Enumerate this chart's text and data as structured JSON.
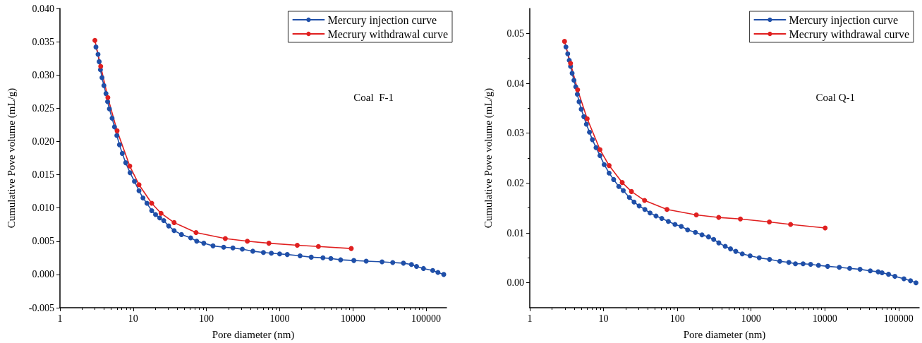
{
  "chart_data": [
    {
      "type": "line",
      "xlabel": "Pore diameter (nm)",
      "ylabel": "Cumulative Pove volume (mL/g)",
      "annotations": [
        "Coal  F-1"
      ],
      "log": "x",
      "grid": false,
      "legend": "top right",
      "marker": "circle",
      "line_style": "solid",
      "xlim": [
        1,
        190000
      ],
      "xticks": [
        1,
        10,
        100,
        1000,
        10000,
        100000
      ],
      "ylim": [
        -0.005,
        0.04
      ],
      "yticks": [
        {
          "value": -0.005,
          "label": "-0.005"
        },
        {
          "value": 0,
          "label": "0.000"
        },
        {
          "value": 0.005,
          "label": "0.005"
        },
        {
          "value": 0.01,
          "label": "0.010"
        },
        {
          "value": 0.015,
          "label": "0.015"
        },
        {
          "value": 0.02,
          "label": "0.020"
        },
        {
          "value": 0.025,
          "label": "0.025"
        },
        {
          "value": 0.03,
          "label": "0.030"
        },
        {
          "value": 0.035,
          "label": "0.035"
        },
        {
          "value": 0.04,
          "label": "0.040"
        }
      ],
      "series": [
        {
          "name": "Mercury injection curve",
          "color": "#1f4fa8",
          "x": [
            3.1,
            3.31,
            3.43,
            3.57,
            3.75,
            3.98,
            4.25,
            4.47,
            4.73,
            5.15,
            5.55,
            5.98,
            6.5,
            7.1,
            7.9,
            9.06,
            10.4,
            12.0,
            13.6,
            15.4,
            17.9,
            20.2,
            23.0,
            26.1,
            30.5,
            36.2,
            45.6,
            60.9,
            73.7,
            92,
            123,
            172,
            230,
            309,
            430,
            600,
            770,
            1000,
            1270,
            1900,
            2700,
            3900,
            5000,
            6800,
            10300,
            15200,
            25000,
            35000,
            49000,
            63000,
            74000,
            92000,
            123000,
            145000,
            174000
          ],
          "values": [
            0.0342,
            0.0331,
            0.032,
            0.0308,
            0.0296,
            0.0284,
            0.0272,
            0.026,
            0.0249,
            0.0235,
            0.0222,
            0.0209,
            0.0195,
            0.0182,
            0.0168,
            0.0153,
            0.014,
            0.0126,
            0.0115,
            0.0107,
            0.0096,
            0.009,
            0.0085,
            0.0081,
            0.0073,
            0.0066,
            0.006,
            0.0055,
            0.005,
            0.0047,
            0.0043,
            0.0041,
            0.004,
            0.0038,
            0.0035,
            0.0033,
            0.0032,
            0.0031,
            0.003,
            0.0028,
            0.0026,
            0.0025,
            0.0024,
            0.0022,
            0.0021,
            0.002,
            0.0019,
            0.0018,
            0.0017,
            0.0015,
            0.0012,
            0.0009,
            0.0006,
            0.0003,
            0.0
          ]
        },
        {
          "name": "Mecrury withdrawal curve",
          "color": "#e02020",
          "x": [
            3.0,
            3.6,
            4.51,
            6.03,
            8.98,
            12.0,
            17.9,
            24.0,
            36.2,
            72.1,
            181,
            362,
            713,
            1740,
            3380,
            9500
          ],
          "values": [
            0.0352,
            0.0313,
            0.0266,
            0.0216,
            0.0163,
            0.0135,
            0.0107,
            0.0092,
            0.0078,
            0.0063,
            0.0054,
            0.005,
            0.0047,
            0.0044,
            0.0042,
            0.0039
          ]
        }
      ]
    },
    {
      "type": "line",
      "xlabel": "Pore diameter (nm)",
      "ylabel": "Cumulative Pove volume (mL/g)",
      "annotations": [
        "Coal Q-1"
      ],
      "log": "x",
      "grid": false,
      "legend": "top right",
      "marker": "circle",
      "line_style": "solid",
      "xlim": [
        1,
        190000
      ],
      "xticks": [
        1,
        10,
        100,
        1000,
        10000,
        100000
      ],
      "ylim": [
        -0.005,
        0.055
      ],
      "yticks": [
        {
          "value": 0,
          "label": "0.00"
        },
        {
          "value": 0.01,
          "label": "0.01"
        },
        {
          "value": 0.02,
          "label": "0.02"
        },
        {
          "value": 0.03,
          "label": "0.03"
        },
        {
          "value": 0.04,
          "label": "0.04"
        },
        {
          "value": 0.05,
          "label": "0.05"
        }
      ],
      "series": [
        {
          "name": "Mercury injection curve",
          "color": "#1f4fa8",
          "x": [
            3.09,
            3.27,
            3.43,
            3.57,
            3.75,
            3.97,
            4.2,
            4.41,
            4.66,
            4.98,
            5.4,
            5.85,
            6.45,
            7.06,
            7.91,
            8.94,
            10.2,
            11.9,
            13.7,
            16.1,
            18.5,
            22.4,
            25.9,
            30.4,
            36.3,
            42.7,
            51.4,
            61.6,
            75.6,
            93,
            113,
            138,
            176,
            216,
            265,
            311,
            365,
            446,
            526,
            620,
            760,
            970,
            1290,
            1780,
            2450,
            3250,
            3990,
            5070,
            6420,
            8200,
            10900,
            15700,
            21700,
            30000,
            41300,
            52800,
            59600,
            73000,
            89000,
            118000,
            145000,
            172000
          ],
          "values": [
            0.0473,
            0.0459,
            0.0446,
            0.0434,
            0.042,
            0.0406,
            0.0393,
            0.0378,
            0.0363,
            0.0348,
            0.0333,
            0.0318,
            0.0302,
            0.0287,
            0.0271,
            0.0255,
            0.0237,
            0.022,
            0.0207,
            0.0193,
            0.0185,
            0.0171,
            0.0162,
            0.0154,
            0.0147,
            0.014,
            0.0134,
            0.0129,
            0.0123,
            0.0117,
            0.0113,
            0.0106,
            0.0101,
            0.0096,
            0.0092,
            0.0087,
            0.008,
            0.0073,
            0.0068,
            0.0063,
            0.0058,
            0.0054,
            0.005,
            0.0047,
            0.0043,
            0.0041,
            0.0038,
            0.0038,
            0.0037,
            0.0035,
            0.0033,
            0.0031,
            0.0029,
            0.0027,
            0.0024,
            0.0022,
            0.002,
            0.0017,
            0.0013,
            0.0008,
            0.0004,
            0.0
          ]
        },
        {
          "name": "Mecrury withdrawal curve",
          "color": "#e02020",
          "x": [
            2.96,
            3.57,
            4.45,
            6.0,
            8.94,
            11.9,
            17.9,
            23.9,
            36.0,
            72.4,
            181,
            364,
            716,
            1770,
            3430,
            10100
          ],
          "values": [
            0.0484,
            0.044,
            0.0387,
            0.0329,
            0.0267,
            0.0235,
            0.0201,
            0.0183,
            0.0165,
            0.0147,
            0.0136,
            0.0131,
            0.0128,
            0.0122,
            0.0117,
            0.011
          ]
        }
      ]
    }
  ]
}
